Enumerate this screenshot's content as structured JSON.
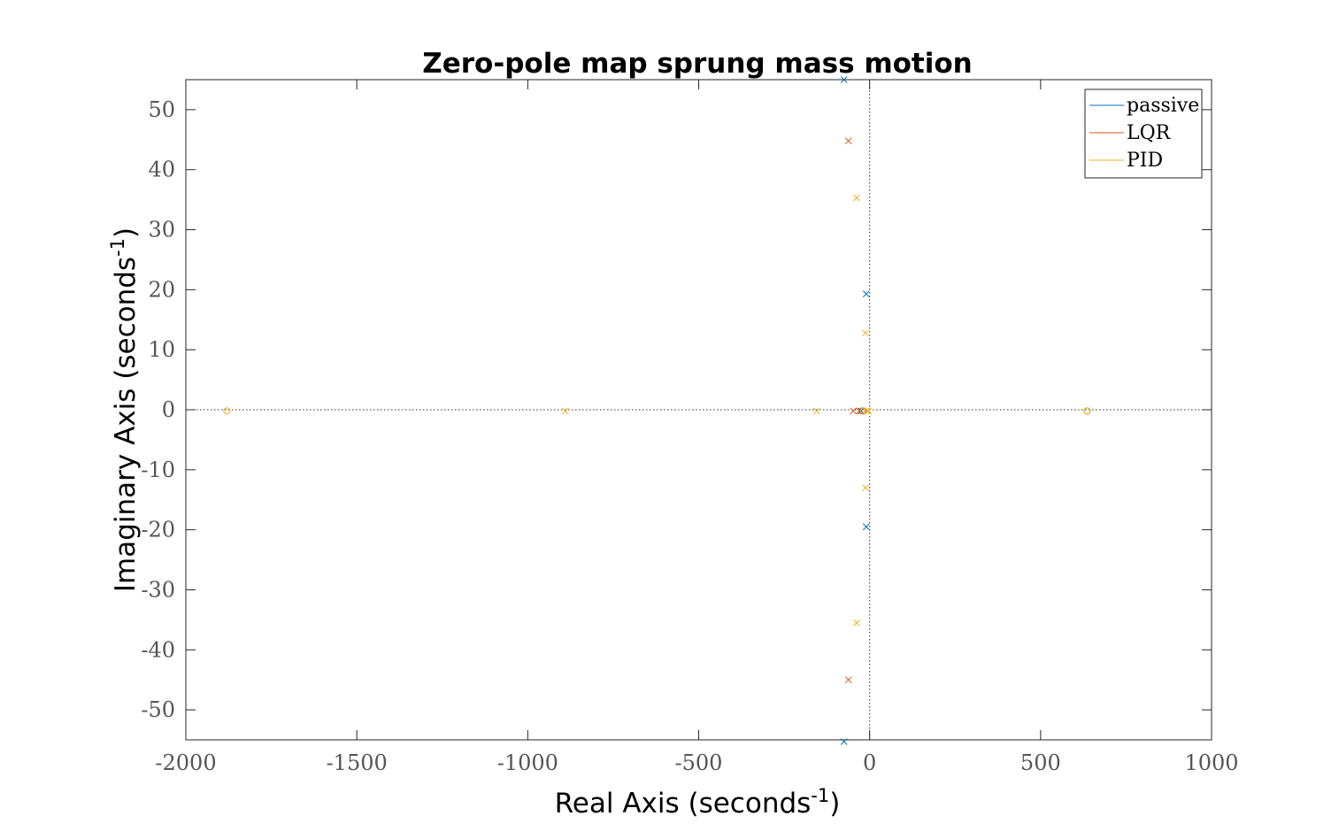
{
  "chart_data": {
    "type": "scatter",
    "title": "Zero-pole map sprung mass motion",
    "xlabel": "Real Axis (seconds",
    "xlabel_sup": "-1",
    "xlabel_end": ")",
    "ylabel": "Imaginary Axis (seconds",
    "ylabel_sup": "-1",
    "ylabel_end": ")",
    "xlim": [
      -2000,
      1000
    ],
    "ylim": [
      -55,
      55
    ],
    "xticks": [
      -2000,
      -1500,
      -1000,
      -500,
      0,
      500,
      1000
    ],
    "xtick_labels": [
      "-2000",
      "-1500",
      "-1000",
      "-500",
      "0",
      "500",
      "1000"
    ],
    "yticks": [
      50,
      40,
      30,
      20,
      10,
      0,
      -10,
      -20,
      -30,
      -40,
      -50
    ],
    "ytick_labels": [
      "50",
      "40",
      "30",
      "20",
      "10",
      "0",
      "-10",
      "-20",
      "-30",
      "-40",
      "-50"
    ],
    "grid": false,
    "reference_lines": {
      "x": 0,
      "y": 0,
      "style": "dotted"
    },
    "legend_position": "top-right",
    "series": [
      {
        "name": "passive",
        "color": "#0072BD",
        "poles": [
          [
            -75,
            55
          ],
          [
            -75,
            -55.3
          ],
          [
            -10,
            19.3
          ],
          [
            -10,
            -19.5
          ],
          [
            -25,
            -0.2
          ]
        ],
        "zeros": [
          [
            -20,
            -0.2
          ]
        ]
      },
      {
        "name": "LQR",
        "color": "#D95319",
        "poles": [
          [
            -62,
            44.8
          ],
          [
            -62,
            -45
          ],
          [
            -48,
            -0.2
          ],
          [
            -30,
            -0.2
          ]
        ],
        "zeros": [
          [
            636,
            -0.2
          ],
          [
            -22,
            -0.2
          ]
        ]
      },
      {
        "name": "PID",
        "color": "#EDB120",
        "poles": [
          [
            -890,
            -0.2
          ],
          [
            -155,
            -0.2
          ],
          [
            -38,
            35.3
          ],
          [
            -38,
            -35.5
          ],
          [
            -12,
            12.8
          ],
          [
            -12,
            -13
          ],
          [
            -8,
            -0.2
          ],
          [
            -3,
            -0.2
          ]
        ],
        "zeros": [
          [
            -1880,
            -0.2
          ],
          [
            636,
            -0.2
          ],
          [
            -18,
            -0.2
          ]
        ]
      }
    ]
  }
}
